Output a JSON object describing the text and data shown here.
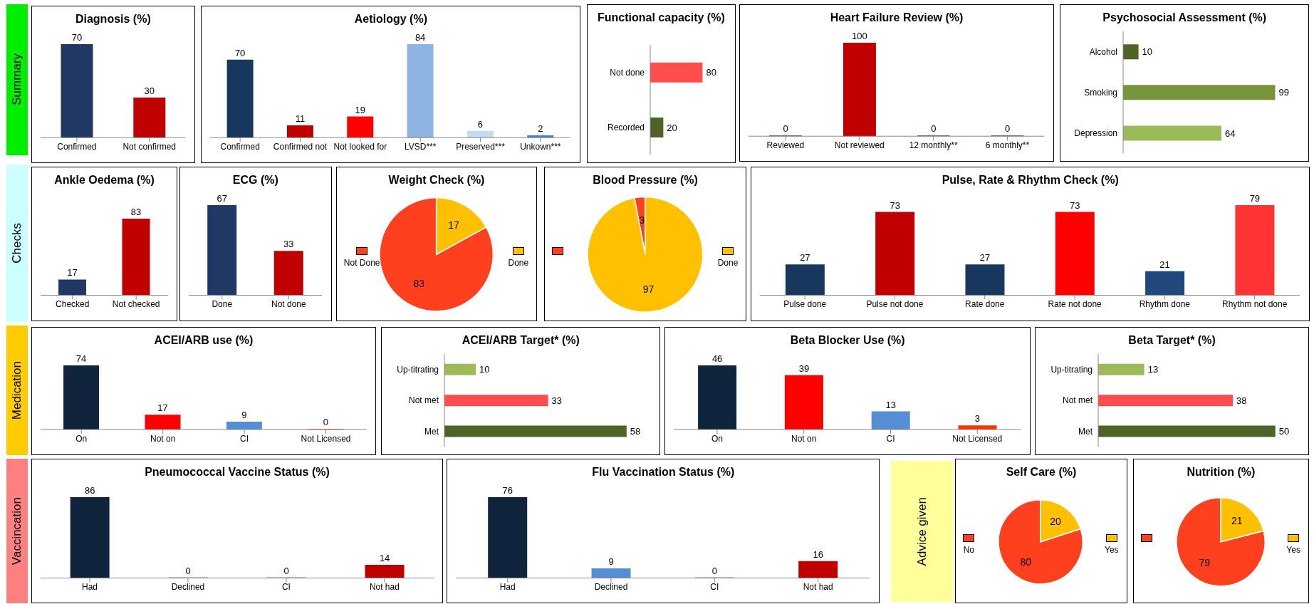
{
  "chart_data": [
    {
      "type": "other",
      "title": "Summary",
      "color": "#00ee00"
    },
    {
      "type": "bar",
      "title": "Diagnosis (%)",
      "categories": [
        "Confirmed",
        "Not confirmed"
      ],
      "values": [
        70,
        30
      ],
      "colors": [
        "#1f3864",
        "#c00000"
      ],
      "data_labels": true
    },
    {
      "type": "bar",
      "title": "Aetiology (%)",
      "categories": [
        "Confirmed",
        "Confirmed not",
        "Not looked for",
        "LVSD***",
        "Preserved***",
        "Unkown***"
      ],
      "values": [
        70,
        11,
        19,
        84,
        6,
        2
      ],
      "colors": [
        "#17375e",
        "#c00000",
        "#ff0000",
        "#8eb4e3",
        "#c6d9f1",
        "#4f81bd"
      ],
      "data_labels": true
    },
    {
      "type": "bar",
      "orientation": "horizontal",
      "title": "Functional capacity (%)",
      "categories": [
        "Not done",
        "Recorded"
      ],
      "values": [
        80,
        20
      ],
      "colors": [
        "#ff4d4d",
        "#4f6228"
      ],
      "data_labels": true
    },
    {
      "type": "bar",
      "title": "Heart Failure Review (%)",
      "categories": [
        "Reviewed",
        "Not reviewed",
        "12 monthly**",
        "6 monthly**"
      ],
      "values": [
        0,
        100,
        0,
        0
      ],
      "colors": [
        "#17375e",
        "#c00000",
        "#17375e",
        "#17375e"
      ],
      "data_labels": true
    },
    {
      "type": "bar",
      "orientation": "horizontal",
      "title": "Psychosocial Assessment (%)",
      "categories": [
        "Alcohol",
        "Smoking",
        "Depression"
      ],
      "values": [
        10,
        99,
        64
      ],
      "colors": [
        "#4f6228",
        "#77933c",
        "#9bbb59"
      ],
      "data_labels": true
    },
    {
      "type": "other",
      "title": "Checks",
      "color": "#ccffff"
    },
    {
      "type": "bar",
      "title": "Ankle Oedema (%)",
      "categories": [
        "Checked",
        "Not checked"
      ],
      "values": [
        17,
        83
      ],
      "colors": [
        "#1f3864",
        "#c00000"
      ],
      "data_labels": true
    },
    {
      "type": "bar",
      "title": "ECG (%)",
      "categories": [
        "Done",
        "Not done"
      ],
      "values": [
        67,
        33
      ],
      "colors": [
        "#1f3864",
        "#c00000"
      ],
      "data_labels": true
    },
    {
      "type": "pie",
      "title": "Weight Check (%)",
      "categories": [
        "Not Done",
        "Done"
      ],
      "values": [
        83,
        17
      ],
      "colors": [
        "#ff401f",
        "#ffc000"
      ],
      "data_labels": true,
      "legend": "right"
    },
    {
      "type": "pie",
      "title": "Blood Pressure (%)",
      "categories": [
        null,
        "Done"
      ],
      "values": [
        3,
        97
      ],
      "colors": [
        "#ff401f",
        "#ffc000"
      ],
      "data_labels": true,
      "legend": "right"
    },
    {
      "type": "bar",
      "title": "Pulse, Rate & Rhythm Check (%)",
      "categories": [
        "Pulse done",
        "Pulse not done",
        "Rate done",
        "Rate not done",
        "Rhythm done",
        "Rhythm not done"
      ],
      "values": [
        27,
        73,
        27,
        73,
        21,
        79
      ],
      "colors": [
        "#17375e",
        "#c00000",
        "#17375e",
        "#ff0000",
        "#1f497d",
        "#ff3333"
      ],
      "data_labels": true
    },
    {
      "type": "other",
      "title": "Medication",
      "color": "#ffcc00"
    },
    {
      "type": "bar",
      "title": "ACEI/ARB use (%)",
      "categories": [
        "On",
        "Not on",
        "CI",
        "Not Licensed"
      ],
      "values": [
        74,
        17,
        9,
        0
      ],
      "colors": [
        "#10243e",
        "#ff0000",
        "#558ed5",
        "#ff3300"
      ],
      "data_labels": true
    },
    {
      "type": "bar",
      "orientation": "horizontal",
      "title": "ACEI/ARB Target* (%)",
      "categories": [
        "Up-titrating",
        "Not met",
        "Met"
      ],
      "values": [
        10,
        33,
        58
      ],
      "colors": [
        "#9bbb59",
        "#ff4d4d",
        "#4f6228"
      ],
      "data_labels": true
    },
    {
      "type": "bar",
      "title": "Beta Blocker Use (%)",
      "categories": [
        "On",
        "Not on",
        "CI",
        "Not Licensed"
      ],
      "values": [
        46,
        39,
        13,
        3
      ],
      "colors": [
        "#10243e",
        "#ff0000",
        "#558ed5",
        "#ff3300"
      ],
      "data_labels": true
    },
    {
      "type": "bar",
      "orientation": "horizontal",
      "title": "Beta Target* (%)",
      "categories": [
        "Up-titrating",
        "Not met",
        "Met"
      ],
      "values": [
        13,
        38,
        50
      ],
      "colors": [
        "#9bbb59",
        "#ff4d4d",
        "#4f6228"
      ],
      "data_labels": true
    },
    {
      "type": "other",
      "title": "Vaccincation",
      "color": "#ff8080"
    },
    {
      "type": "bar",
      "title": "Pneumococcal Vaccine Status (%)",
      "categories": [
        "Had",
        "Declined",
        "CI",
        "Not had"
      ],
      "values": [
        86,
        0,
        0,
        14
      ],
      "colors": [
        "#10243e",
        "#558ed5",
        "#558ed5",
        "#c00000"
      ],
      "data_labels": true
    },
    {
      "type": "bar",
      "title": "Flu Vaccination Status (%)",
      "categories": [
        "Had",
        "Declined",
        "CI",
        "Not had"
      ],
      "values": [
        76,
        9,
        0,
        16
      ],
      "colors": [
        "#10243e",
        "#558ed5",
        "#558ed5",
        "#c00000"
      ],
      "data_labels": true
    },
    {
      "type": "other",
      "title": "Advice given",
      "color": "#ffff99"
    },
    {
      "type": "pie",
      "title": "Self Care (%)",
      "categories": [
        "No",
        "Yes"
      ],
      "values": [
        80,
        20
      ],
      "colors": [
        "#ff401f",
        "#ffc000"
      ],
      "data_labels": true,
      "legend": "right"
    },
    {
      "type": "pie",
      "title": "Nutrition (%)",
      "categories": [
        null,
        "Yes"
      ],
      "values": [
        79,
        21
      ],
      "colors": [
        "#ff401f",
        "#ffc000"
      ],
      "data_labels": true,
      "legend": "right"
    }
  ]
}
